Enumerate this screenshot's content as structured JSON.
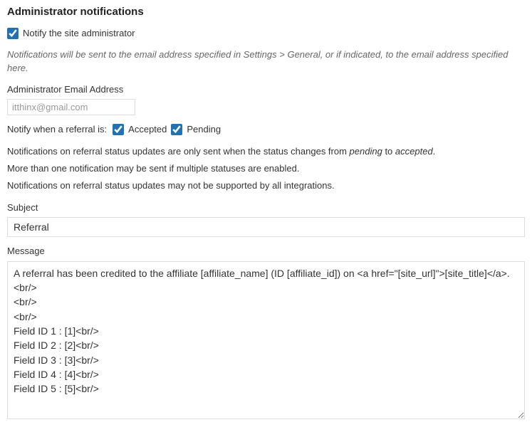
{
  "heading": "Administrator notifications",
  "notify_admin": {
    "checked": true,
    "label": "Notify the site administrator"
  },
  "help_text": "Notifications will be sent to the email address specified in Settings > General, or if indicated, to the email address specified here.",
  "email_field": {
    "label": "Administrator Email Address",
    "placeholder": "itthinx@gmail.com",
    "value": ""
  },
  "notify_when": {
    "lead": "Notify when a referral is:",
    "accepted": {
      "label": "Accepted",
      "checked": true
    },
    "pending": {
      "label": "Pending",
      "checked": true
    }
  },
  "desc": {
    "line1_a": "Notifications on referral status updates are only sent when the status changes from ",
    "line1_em1": "pending",
    "line1_b": " to ",
    "line1_em2": "accepted",
    "line1_c": ".",
    "line2": "More than one notification may be sent if multiple statuses are enabled.",
    "line3": "Notifications on referral status updates may not be supported by all integrations."
  },
  "subject": {
    "label": "Subject",
    "value": "Referral"
  },
  "message": {
    "label": "Message",
    "value": "A referral has been credited to the affiliate [affiliate_name] (ID [affiliate_id]) on <a href=\"[site_url]\">[site_title]</a>.<br/>\n<br/>\n<br/>\nField ID 1 : [1]<br/>\nField ID 2 : [2]<br/>\nField ID 3 : [3]<br/>\nField ID 4 : [4]<br/>\nField ID 5 : [5]<br/>"
  }
}
